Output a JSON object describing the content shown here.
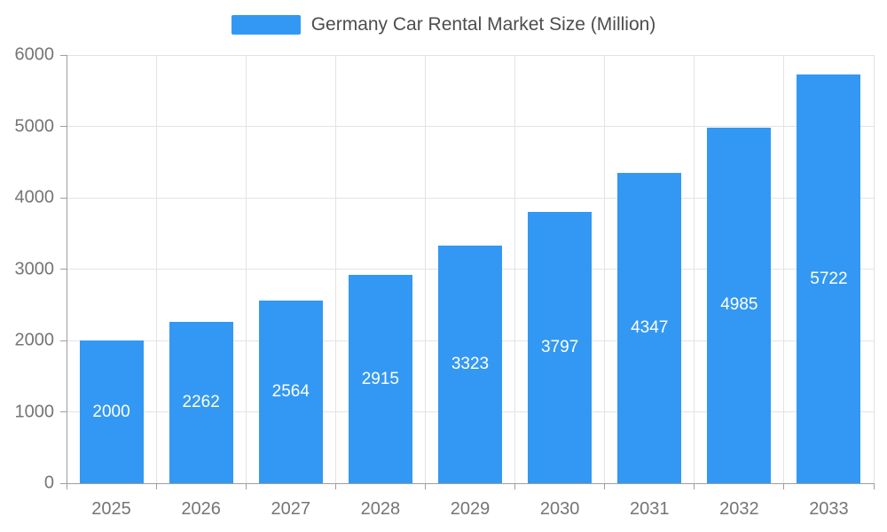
{
  "chart_data": {
    "type": "bar",
    "title": "Germany Car Rental Market Size (Million)",
    "categories": [
      "2025",
      "2026",
      "2027",
      "2028",
      "2029",
      "2030",
      "2031",
      "2032",
      "2033"
    ],
    "values": [
      2000,
      2262,
      2564,
      2915,
      3323,
      3797,
      4347,
      4985,
      5722
    ],
    "series": [
      {
        "name": "Germany Car Rental Market Size (Million)",
        "values": [
          2000,
          2262,
          2564,
          2915,
          3323,
          3797,
          4347,
          4985,
          5722
        ]
      }
    ],
    "xlabel": "",
    "ylabel": "",
    "ylim": [
      0,
      6000
    ],
    "y_ticks": [
      0,
      1000,
      2000,
      3000,
      4000,
      5000,
      6000
    ],
    "grid": "on",
    "legend_position": "top-center",
    "bar_label_position": "inside-center",
    "colors": {
      "bar": "#3398f3",
      "bar_label_text": "#ffffff",
      "axis_text": "#757575",
      "title_text": "#4d4d4d",
      "gridline": "#e3e3e3",
      "axis_line": "#9e9e9e",
      "background": "#ffffff"
    }
  }
}
